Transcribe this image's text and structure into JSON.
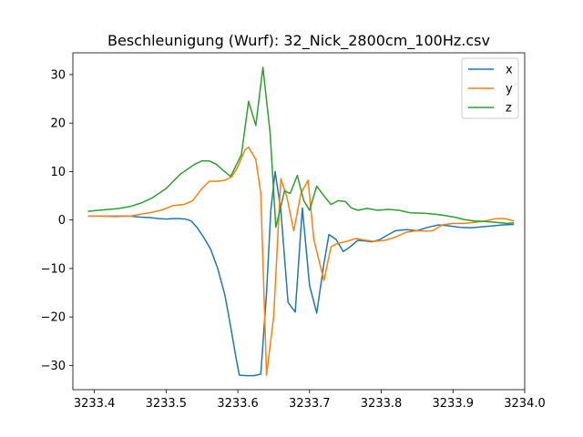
{
  "chart_data": {
    "type": "line",
    "title": "Beschleunigung (Wurf): 32_Nick_2800cm_100Hz.csv",
    "xlabel": "",
    "ylabel": "",
    "xlim": [
      3233.37,
      3234.0
    ],
    "ylim": [
      -35,
      34.5
    ],
    "x_ticks": [
      3233.4,
      3233.5,
      3233.6,
      3233.7,
      3233.8,
      3233.9,
      3234.0
    ],
    "x_tick_labels": [
      "3233.4",
      "3233.5",
      "3233.6",
      "3233.7",
      "3233.8",
      "3233.9",
      "3234.0"
    ],
    "y_ticks": [
      -30,
      -20,
      -10,
      0,
      10,
      20,
      30
    ],
    "y_tick_labels": [
      "−30",
      "−20",
      "−10",
      "0",
      "10",
      "20",
      "30"
    ],
    "grid": false,
    "legend_position": "top-right",
    "series": [
      {
        "name": "x",
        "color": "#1f77b4",
        "points": [
          [
            3233.391,
            0.8
          ],
          [
            3233.405,
            0.8
          ],
          [
            3233.42,
            0.8
          ],
          [
            3233.435,
            0.8
          ],
          [
            3233.45,
            0.8
          ],
          [
            3233.464,
            0.6
          ],
          [
            3233.477,
            0.5
          ],
          [
            3233.49,
            0.3
          ],
          [
            3233.5,
            0.2
          ],
          [
            3233.51,
            0.3
          ],
          [
            3233.518,
            0.3
          ],
          [
            3233.527,
            0.2
          ],
          [
            3233.535,
            -0.2
          ],
          [
            3233.543,
            -1.5
          ],
          [
            3233.552,
            -3.5
          ],
          [
            3233.562,
            -6.0
          ],
          [
            3233.572,
            -10.0
          ],
          [
            3233.582,
            -15.5
          ],
          [
            3233.59,
            -22.0
          ],
          [
            3233.597,
            -28.0
          ],
          [
            3233.602,
            -32.0
          ],
          [
            3233.612,
            -32.1
          ],
          [
            3233.622,
            -32.1
          ],
          [
            3233.632,
            -31.8
          ],
          [
            3233.64,
            -15.0
          ],
          [
            3233.646,
            2.0
          ],
          [
            3233.652,
            10.0
          ],
          [
            3233.66,
            2.0
          ],
          [
            3233.67,
            -17.0
          ],
          [
            3233.68,
            -19.0
          ],
          [
            3233.69,
            2.5
          ],
          [
            3233.7,
            -13.5
          ],
          [
            3233.71,
            -19.2
          ],
          [
            3233.72,
            -9.0
          ],
          [
            3233.727,
            -3.0
          ],
          [
            3233.737,
            -4.0
          ],
          [
            3233.747,
            -6.5
          ],
          [
            3233.757,
            -5.5
          ],
          [
            3233.767,
            -4.2
          ],
          [
            3233.777,
            -4.3
          ],
          [
            3233.787,
            -4.5
          ],
          [
            3233.797,
            -4.1
          ],
          [
            3233.81,
            -3.0
          ],
          [
            3233.82,
            -2.2
          ],
          [
            3233.835,
            -2.0
          ],
          [
            3233.85,
            -2.2
          ],
          [
            3233.865,
            -1.5
          ],
          [
            3233.88,
            -1.0
          ],
          [
            3233.895,
            -1.2
          ],
          [
            3233.91,
            -1.5
          ],
          [
            3233.925,
            -1.6
          ],
          [
            3233.94,
            -1.4
          ],
          [
            3233.955,
            -1.2
          ],
          [
            3233.97,
            -1.0
          ],
          [
            3233.985,
            -0.9
          ]
        ]
      },
      {
        "name": "y",
        "color": "#ff7f0e",
        "points": [
          [
            3233.391,
            0.8
          ],
          [
            3233.41,
            0.8
          ],
          [
            3233.43,
            0.7
          ],
          [
            3233.45,
            0.8
          ],
          [
            3233.465,
            1.2
          ],
          [
            3233.48,
            1.6
          ],
          [
            3233.495,
            2.1
          ],
          [
            3233.51,
            3.0
          ],
          [
            3233.525,
            3.2
          ],
          [
            3233.537,
            4.0
          ],
          [
            3233.55,
            6.5
          ],
          [
            3233.56,
            8.0
          ],
          [
            3233.572,
            8.0
          ],
          [
            3233.582,
            8.2
          ],
          [
            3233.592,
            9.0
          ],
          [
            3233.6,
            11.0
          ],
          [
            3233.61,
            14.5
          ],
          [
            3233.615,
            15.0
          ],
          [
            3233.625,
            12.5
          ],
          [
            3233.632,
            5.5
          ],
          [
            3233.64,
            -32.0
          ],
          [
            3233.65,
            -20.0
          ],
          [
            3233.66,
            8.5
          ],
          [
            3233.668,
            5.0
          ],
          [
            3233.678,
            -2.2
          ],
          [
            3233.688,
            5.5
          ],
          [
            3233.698,
            8.2
          ],
          [
            3233.706,
            -4.0
          ],
          [
            3233.72,
            -12.5
          ],
          [
            3233.73,
            -5.5
          ],
          [
            3233.74,
            -4.8
          ],
          [
            3233.752,
            -4.4
          ],
          [
            3233.765,
            -3.8
          ],
          [
            3233.775,
            -4.1
          ],
          [
            3233.79,
            -4.4
          ],
          [
            3233.805,
            -4.2
          ],
          [
            3233.82,
            -3.5
          ],
          [
            3233.835,
            -2.5
          ],
          [
            3233.85,
            -2.2
          ],
          [
            3233.862,
            -2.3
          ],
          [
            3233.872,
            -2.2
          ],
          [
            3233.885,
            -1.0
          ],
          [
            3233.9,
            -0.7
          ],
          [
            3233.915,
            -0.7
          ],
          [
            3233.93,
            -0.5
          ],
          [
            3233.945,
            -0.2
          ],
          [
            3233.96,
            0.3
          ],
          [
            3233.972,
            0.3
          ],
          [
            3233.985,
            -0.2
          ]
        ]
      },
      {
        "name": "z",
        "color": "#2ca02c",
        "points": [
          [
            3233.391,
            1.8
          ],
          [
            3233.405,
            2.0
          ],
          [
            3233.42,
            2.2
          ],
          [
            3233.435,
            2.4
          ],
          [
            3233.45,
            2.8
          ],
          [
            3233.465,
            3.5
          ],
          [
            3233.48,
            4.5
          ],
          [
            3233.49,
            5.5
          ],
          [
            3233.5,
            6.5
          ],
          [
            3233.51,
            8.0
          ],
          [
            3233.52,
            9.5
          ],
          [
            3233.53,
            10.5
          ],
          [
            3233.54,
            11.5
          ],
          [
            3233.55,
            12.2
          ],
          [
            3233.56,
            12.2
          ],
          [
            3233.57,
            11.5
          ],
          [
            3233.58,
            10.2
          ],
          [
            3233.59,
            9.0
          ],
          [
            3233.6,
            12.0
          ],
          [
            3233.605,
            13.5
          ],
          [
            3233.615,
            24.5
          ],
          [
            3233.625,
            19.5
          ],
          [
            3233.635,
            31.5
          ],
          [
            3233.645,
            18.0
          ],
          [
            3233.653,
            -1.5
          ],
          [
            3233.665,
            6.0
          ],
          [
            3233.673,
            5.5
          ],
          [
            3233.683,
            9.2
          ],
          [
            3233.692,
            4.0
          ],
          [
            3233.7,
            2.0
          ],
          [
            3233.71,
            7.0
          ],
          [
            3233.72,
            5.0
          ],
          [
            3233.73,
            3.2
          ],
          [
            3233.74,
            4.0
          ],
          [
            3233.75,
            3.8
          ],
          [
            3233.758,
            2.5
          ],
          [
            3233.768,
            2.0
          ],
          [
            3233.78,
            2.4
          ],
          [
            3233.795,
            2.0
          ],
          [
            3233.81,
            2.2
          ],
          [
            3233.825,
            2.0
          ],
          [
            3233.84,
            1.5
          ],
          [
            3233.86,
            1.4
          ],
          [
            3233.875,
            1.2
          ],
          [
            3233.89,
            0.9
          ],
          [
            3233.905,
            0.5
          ],
          [
            3233.915,
            0.1
          ],
          [
            3233.93,
            -0.2
          ],
          [
            3233.945,
            -0.3
          ],
          [
            3233.96,
            -0.5
          ],
          [
            3233.975,
            -0.7
          ],
          [
            3233.985,
            -0.6
          ]
        ]
      }
    ]
  }
}
